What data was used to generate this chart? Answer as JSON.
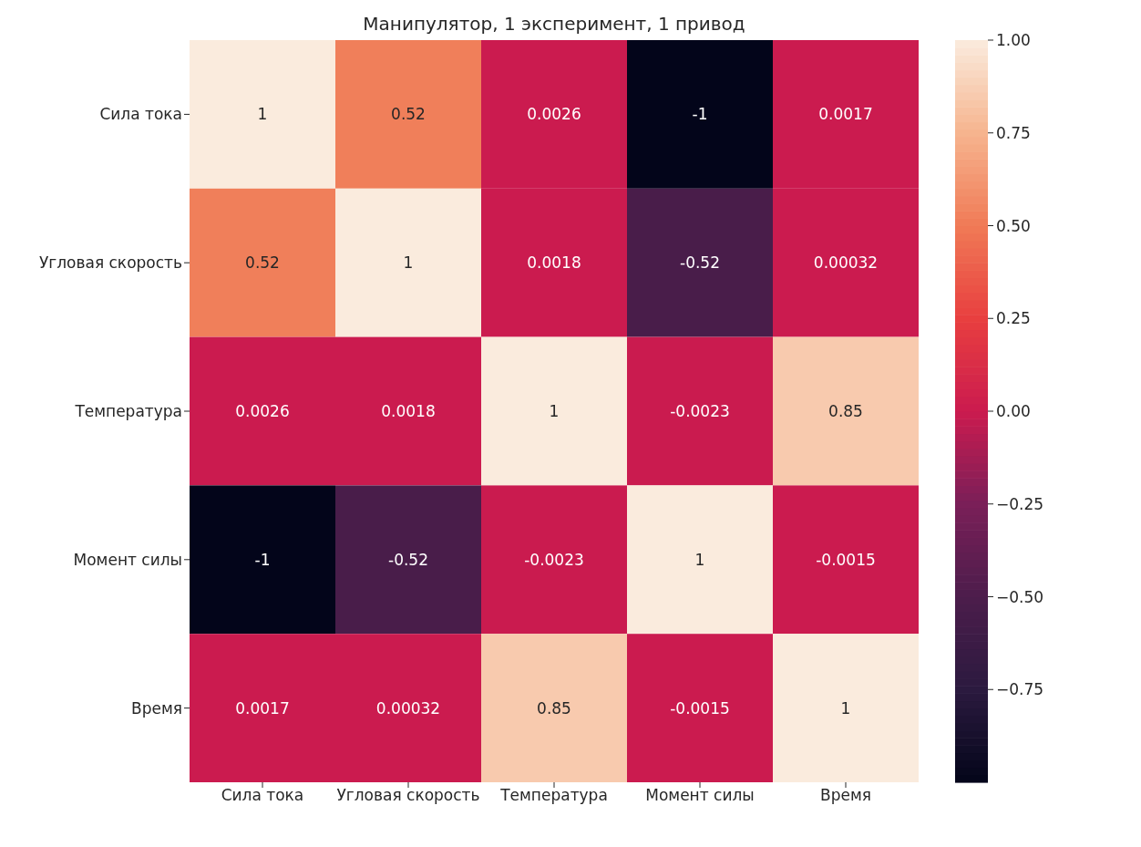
{
  "chart_data": {
    "type": "heatmap",
    "title": "Манипулятор, 1 эксперимент, 1 привод",
    "categories": [
      "Сила тока",
      "Угловая скорость",
      "Температура",
      "Момент силы",
      "Время"
    ],
    "y_categories": [
      "Сила тока",
      "Угловая скорость",
      "Температура",
      "Момент силы",
      "Время"
    ],
    "cells": [
      [
        1,
        0.52,
        0.0026,
        -1,
        0.0017
      ],
      [
        0.52,
        1,
        0.0018,
        -0.52,
        0.00032
      ],
      [
        0.0026,
        0.0018,
        1,
        -0.0023,
        0.85
      ],
      [
        -1,
        -0.52,
        -0.0023,
        1,
        -0.0015
      ],
      [
        0.0017,
        0.00032,
        0.85,
        -0.0015,
        1
      ]
    ],
    "data_labels": true,
    "clim": [
      -1,
      1
    ],
    "cticks": [
      {
        "value": -0.75,
        "label": "−0.75"
      },
      {
        "value": -0.5,
        "label": "−0.50"
      },
      {
        "value": -0.25,
        "label": "−0.25"
      },
      {
        "value": 0,
        "label": "0.00"
      },
      {
        "value": 0.25,
        "label": "0.25"
      },
      {
        "value": 0.5,
        "label": "0.50"
      },
      {
        "value": 0.75,
        "label": "0.75"
      },
      {
        "value": 1,
        "label": "1.00"
      }
    ]
  }
}
